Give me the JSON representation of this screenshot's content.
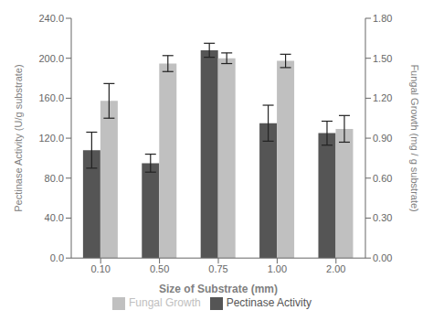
{
  "chart_data": {
    "type": "bar",
    "xlabel": "Size of Substrate (mm)",
    "ylabel": "Pectinase Activity (U/g substrate)",
    "y2label": "Fungal Growth (mg / g substrate)",
    "categories": [
      "0.10",
      "0.50",
      "0.75",
      "1.00",
      "2.00"
    ],
    "series": [
      {
        "name": "Pectinase Activity",
        "color": "#555555",
        "values": [
          108.0,
          95.0,
          208.0,
          135.0,
          125.0
        ],
        "errors": [
          18.0,
          9.0,
          7.0,
          18.0,
          12.0
        ],
        "axis": "y"
      },
      {
        "name": "Fungal Growth",
        "color": "#c0c0c0",
        "values": [
          1.18,
          1.46,
          1.5,
          1.48,
          0.97
        ],
        "errors": [
          0.13,
          0.06,
          0.04,
          0.05,
          0.1
        ],
        "axis": "y2"
      }
    ],
    "ylim": [
      0,
      240.0
    ],
    "yticks": [
      {
        "value": 0,
        "label": "0.0"
      },
      {
        "value": 40,
        "label": "40.0"
      },
      {
        "value": 80,
        "label": "80.0"
      },
      {
        "value": 120,
        "label": "120.0"
      },
      {
        "value": 160,
        "label": "160.0"
      },
      {
        "value": 200,
        "label": "200.0"
      },
      {
        "value": 240,
        "label": "240.0"
      }
    ],
    "y2lim": [
      0.0,
      1.8
    ],
    "y2ticks": [
      {
        "value": 0,
        "label": "0.00"
      },
      {
        "value": 0.3,
        "label": "0.30"
      },
      {
        "value": 0.6,
        "label": "0.60"
      },
      {
        "value": 0.9,
        "label": "0.90"
      },
      {
        "value": 1.2,
        "label": "1.20"
      },
      {
        "value": 1.5,
        "label": "1.50"
      },
      {
        "value": 1.8,
        "label": "1.80"
      }
    ],
    "grid": false,
    "legend": "bottom"
  }
}
